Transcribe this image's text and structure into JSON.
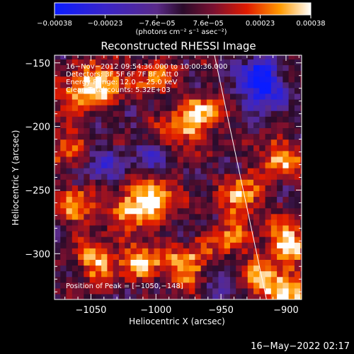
{
  "chart_data": {
    "type": "heatmap",
    "title": "Reconstructed RHESSI Image",
    "xlabel": "Heliocentric X (arcsec)",
    "ylabel": "Heliocentric Y (arcsec)",
    "xlim": [
      -1078,
      -888
    ],
    "ylim": [
      -336,
      -144
    ],
    "xticks": [
      -1050,
      -1000,
      -950,
      -900
    ],
    "xtick_labels": [
      "−1050",
      "−1000",
      "−950",
      "−900"
    ],
    "yticks": [
      -150,
      -200,
      -250,
      -300
    ],
    "ytick_labels": [
      "−150",
      "−200",
      "−250",
      "−300"
    ],
    "colorbar": {
      "range": [
        -0.00038,
        0.00038
      ],
      "tick_values": [
        -0.00038,
        -0.00023,
        -7.6e-05,
        7.6e-05,
        0.00023,
        0.00038
      ],
      "tick_labels": [
        "−0.00038",
        "−0.00023",
        "−7.6e−05",
        "7.6e−05",
        "0.00023",
        "0.00038"
      ],
      "unit_label": "(photons cm⁻² s⁻¹ asec⁻²)"
    },
    "annotations": [
      "16−Nov−2012 09:54:36.000 to 10:00:36.000",
      "Detectors: 3F 5F 6F 7F 8F, Att 0",
      "Energy Range: 12.0 − 25.0 keV",
      "Clean    Total counts: 5.32E+03"
    ],
    "peak_label": "Position of Peak = [−1050,−148]",
    "limb_line": {
      "x": [
        -955,
        -915
      ],
      "y": [
        -144,
        -336
      ]
    },
    "hot_spots": [
      {
        "x": -1040,
        "y": -165,
        "intensity": 0.9
      },
      {
        "x": -1060,
        "y": -175,
        "intensity": 0.75
      },
      {
        "x": -1000,
        "y": -160,
        "intensity": 0.6
      },
      {
        "x": -965,
        "y": -190,
        "intensity": 0.85
      },
      {
        "x": -985,
        "y": -205,
        "intensity": 0.7
      },
      {
        "x": -1000,
        "y": -255,
        "intensity": 0.95
      },
      {
        "x": -1020,
        "y": -265,
        "intensity": 0.8
      },
      {
        "x": -1060,
        "y": -262,
        "intensity": 0.7
      },
      {
        "x": -1045,
        "y": -305,
        "intensity": 0.8
      },
      {
        "x": -1010,
        "y": -305,
        "intensity": 0.8
      },
      {
        "x": -975,
        "y": -310,
        "intensity": 0.9
      },
      {
        "x": -935,
        "y": -255,
        "intensity": 0.85
      },
      {
        "x": -905,
        "y": -225,
        "intensity": 0.8
      },
      {
        "x": -900,
        "y": -290,
        "intensity": 1.0
      },
      {
        "x": -898,
        "y": -330,
        "intensity": 0.95
      },
      {
        "x": -920,
        "y": -320,
        "intensity": 0.75
      },
      {
        "x": -1070,
        "y": -215,
        "intensity": 0.6
      },
      {
        "x": -945,
        "y": -290,
        "intensity": 0.6
      }
    ],
    "cold_spots": [
      {
        "x": -922,
        "y": -160,
        "intensity": 1.0
      },
      {
        "x": -915,
        "y": -175,
        "intensity": 0.8
      },
      {
        "x": -1040,
        "y": -230,
        "intensity": 0.6
      },
      {
        "x": -950,
        "y": -320,
        "intensity": 0.55
      },
      {
        "x": -1000,
        "y": -225,
        "intensity": 0.55
      }
    ]
  },
  "footer": {
    "date": "16−May−2022 02:17"
  }
}
